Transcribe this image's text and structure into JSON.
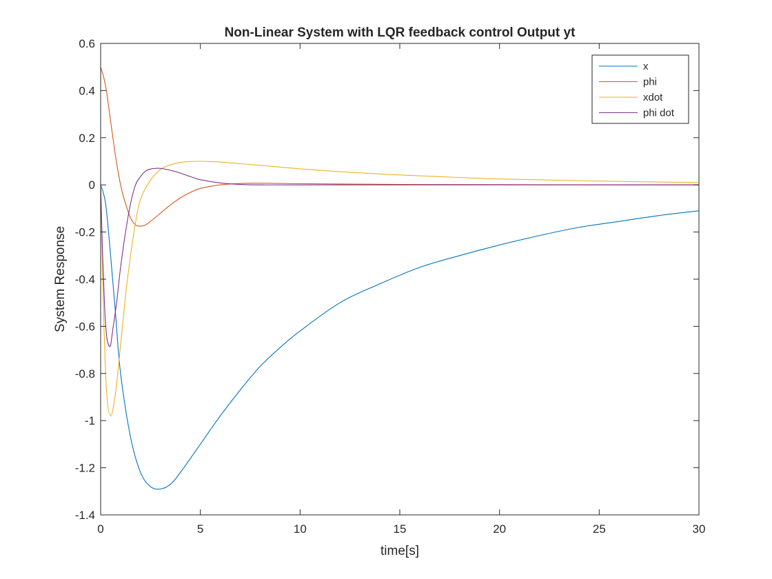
{
  "chart_data": {
    "type": "line",
    "title": "Non-Linear System with LQR feedback control Output yt",
    "xlabel": "time[s]",
    "ylabel": "System Response",
    "xlim": [
      0,
      30
    ],
    "ylim": [
      -1.4,
      0.6
    ],
    "xticks": [
      0,
      5,
      10,
      15,
      20,
      25,
      30
    ],
    "yticks": [
      0.6,
      0.4,
      0.2,
      0,
      -0.2,
      -0.4,
      -0.6,
      -0.8,
      -1,
      -1.2,
      -1.4
    ],
    "xtick_labels": [
      "0",
      "5",
      "10",
      "15",
      "20",
      "25",
      "30"
    ],
    "ytick_labels": [
      "0.6",
      "0.4",
      "0.2",
      "0",
      "-0.2",
      "-0.4",
      "-0.6",
      "-0.8",
      "-1",
      "-1.2",
      "-1.4"
    ],
    "grid": false,
    "legend_position": "top-right",
    "series": [
      {
        "name": "x",
        "color": "#0072BD",
        "x": [
          0,
          0.25,
          0.5,
          0.75,
          1,
          1.5,
          2,
          2.5,
          3,
          3.5,
          4,
          5,
          6,
          7,
          8,
          9,
          10,
          12,
          14,
          16,
          18,
          20,
          22,
          24,
          26,
          28,
          30
        ],
        "y": [
          0,
          -0.08,
          -0.3,
          -0.55,
          -0.8,
          -1.07,
          -1.22,
          -1.28,
          -1.29,
          -1.27,
          -1.22,
          -1.1,
          -0.98,
          -0.87,
          -0.77,
          -0.69,
          -0.62,
          -0.5,
          -0.42,
          -0.35,
          -0.3,
          -0.255,
          -0.215,
          -0.18,
          -0.155,
          -0.13,
          -0.11
        ]
      },
      {
        "name": "phi",
        "color": "#D95319",
        "x": [
          0,
          0.25,
          0.5,
          0.75,
          1,
          1.25,
          1.5,
          1.75,
          2,
          2.25,
          2.5,
          3,
          3.5,
          4,
          4.5,
          5,
          6,
          7,
          8,
          10,
          15,
          20,
          30
        ],
        "y": [
          0.5,
          0.42,
          0.27,
          0.12,
          0,
          -0.08,
          -0.14,
          -0.17,
          -0.175,
          -0.17,
          -0.155,
          -0.12,
          -0.085,
          -0.055,
          -0.032,
          -0.015,
          0.0,
          0.006,
          0.007,
          0.005,
          0.002,
          0.001,
          0
        ]
      },
      {
        "name": "xdot",
        "color": "#EDB120",
        "x": [
          0,
          0.15,
          0.3,
          0.5,
          0.75,
          1,
          1.25,
          1.5,
          1.75,
          2,
          2.5,
          3,
          3.5,
          4,
          4.5,
          5,
          5.5,
          6,
          7,
          8,
          10,
          12,
          15,
          20,
          25,
          30
        ],
        "y": [
          0,
          -0.55,
          -0.88,
          -0.98,
          -0.88,
          -0.68,
          -0.47,
          -0.3,
          -0.16,
          -0.06,
          0.02,
          0.065,
          0.085,
          0.095,
          0.099,
          0.1,
          0.099,
          0.097,
          0.09,
          0.083,
          0.068,
          0.056,
          0.042,
          0.025,
          0.016,
          0.01
        ]
      },
      {
        "name": "phi dot",
        "color": "#7E2F8E",
        "x": [
          0,
          0.1,
          0.2,
          0.3,
          0.4,
          0.5,
          0.6,
          0.8,
          1,
          1.25,
          1.5,
          1.75,
          2,
          2.25,
          2.5,
          2.75,
          3,
          3.5,
          4,
          4.5,
          5,
          6,
          7,
          8,
          10,
          15,
          30
        ],
        "y": [
          0,
          -0.3,
          -0.52,
          -0.64,
          -0.68,
          -0.68,
          -0.62,
          -0.5,
          -0.35,
          -0.2,
          -0.08,
          0.0,
          0.035,
          0.058,
          0.067,
          0.07,
          0.07,
          0.062,
          0.05,
          0.035,
          0.022,
          0.008,
          0.002,
          0.0,
          0.0,
          0.0,
          0.0
        ]
      }
    ]
  }
}
